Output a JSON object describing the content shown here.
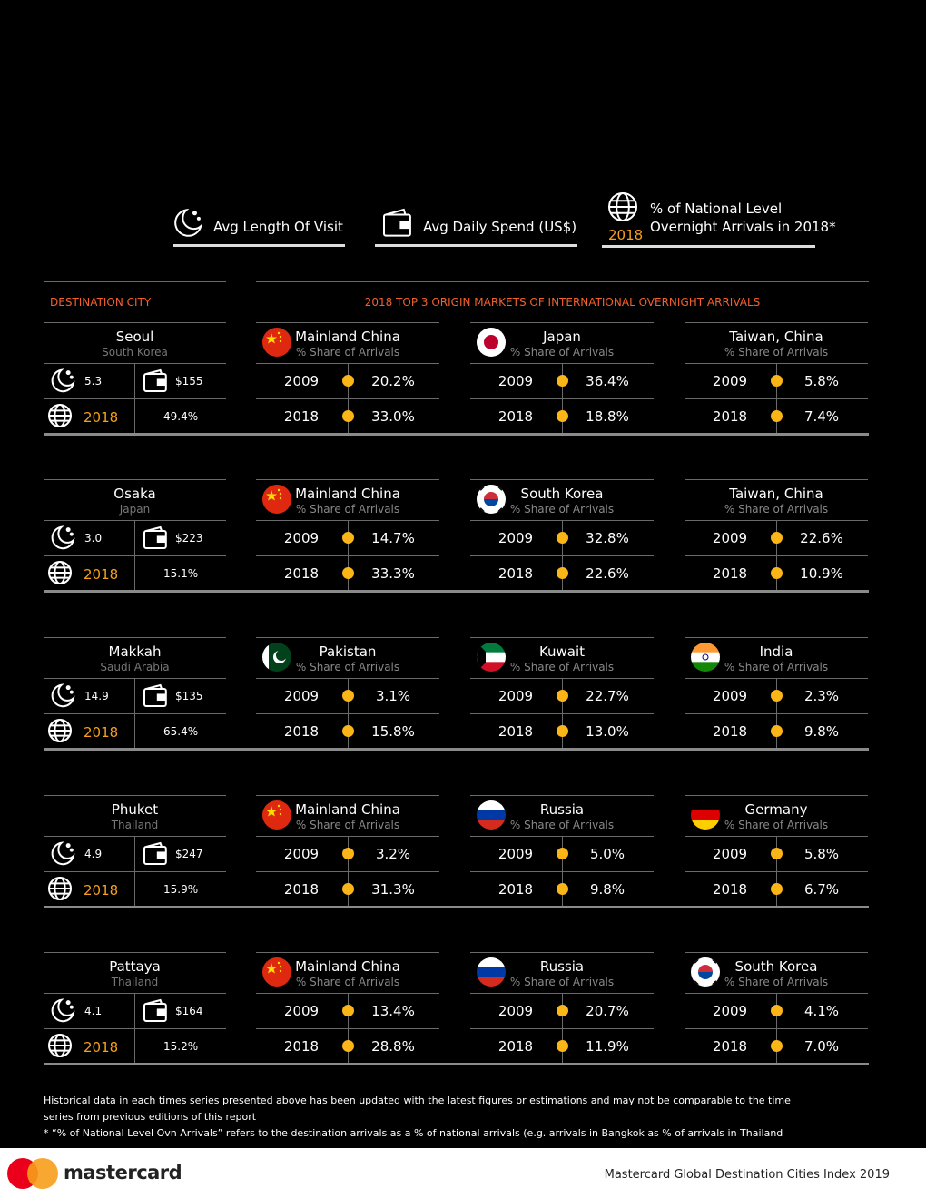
{
  "legend": {
    "length": "Avg Length Of Visit",
    "spend": "Avg Daily Spend (US$)",
    "year": "2018",
    "national_line1": "% of National Level",
    "national_line2": "Overnight Arrivals in 2018*"
  },
  "headers": {
    "destination": "DESTINATION CITY",
    "markets": "2018 TOP 3 ORIGIN MARKETS OF INTERNATIONAL OVERNIGHT ARRIVALS"
  },
  "share_label": "% Share of Arrivals",
  "years": [
    "2009",
    "2018"
  ],
  "cities": [
    {
      "name": "Seoul",
      "country": "South Korea",
      "length": "5.3",
      "spend": "$155",
      "national": "49.4%",
      "markets": [
        {
          "name": "Mainland China",
          "values": [
            "20.2%",
            "33.0%"
          ]
        },
        {
          "name": "Japan",
          "values": [
            "36.4%",
            "18.8%"
          ]
        },
        {
          "name": "Taiwan, China",
          "values": [
            "5.8%",
            "7.4%"
          ]
        }
      ]
    },
    {
      "name": "Osaka",
      "country": "Japan",
      "length": "3.0",
      "spend": "$223",
      "national": "15.1%",
      "markets": [
        {
          "name": "Mainland China",
          "values": [
            "14.7%",
            "33.3%"
          ]
        },
        {
          "name": "South Korea",
          "values": [
            "32.8%",
            "22.6%"
          ]
        },
        {
          "name": "Taiwan, China",
          "values": [
            "22.6%",
            "10.9%"
          ]
        }
      ]
    },
    {
      "name": "Makkah",
      "country": "Saudi Arabia",
      "length": "14.9",
      "spend": "$135",
      "national": "65.4%",
      "markets": [
        {
          "name": "Pakistan",
          "values": [
            "3.1%",
            "15.8%"
          ]
        },
        {
          "name": "Kuwait",
          "values": [
            "22.7%",
            "13.0%"
          ]
        },
        {
          "name": "India",
          "values": [
            "2.3%",
            "9.8%"
          ]
        }
      ]
    },
    {
      "name": "Phuket",
      "country": "Thailand",
      "length": "4.9",
      "spend": "$247",
      "national": "15.9%",
      "markets": [
        {
          "name": "Mainland China",
          "values": [
            "3.2%",
            "31.3%"
          ]
        },
        {
          "name": "Russia",
          "values": [
            "5.0%",
            "9.8%"
          ]
        },
        {
          "name": "Germany",
          "values": [
            "5.8%",
            "6.7%"
          ]
        }
      ]
    },
    {
      "name": "Pattaya",
      "country": "Thailand",
      "length": "4.1",
      "spend": "$164",
      "national": "15.2%",
      "markets": [
        {
          "name": "Mainland China",
          "values": [
            "13.4%",
            "28.8%"
          ]
        },
        {
          "name": "Russia",
          "values": [
            "20.7%",
            "11.9%"
          ]
        },
        {
          "name": "South Korea",
          "values": [
            "4.1%",
            "7.0%"
          ]
        }
      ]
    }
  ],
  "footnotes": [
    "Historical data in each times series presented above has been updated with the latest figures or estimations and may not be comparable to the time",
    "series from previous editions of this report",
    "* “% of National Level Ovn Arrivals” refers to the destination arrivals as a % of national arrivals  (e.g. arrivals  in Bangkok as % of arrivals in Thailand"
  ],
  "footer": {
    "brand": "mastercard",
    "report": "Mastercard Global Destination Cities Index 2019"
  }
}
